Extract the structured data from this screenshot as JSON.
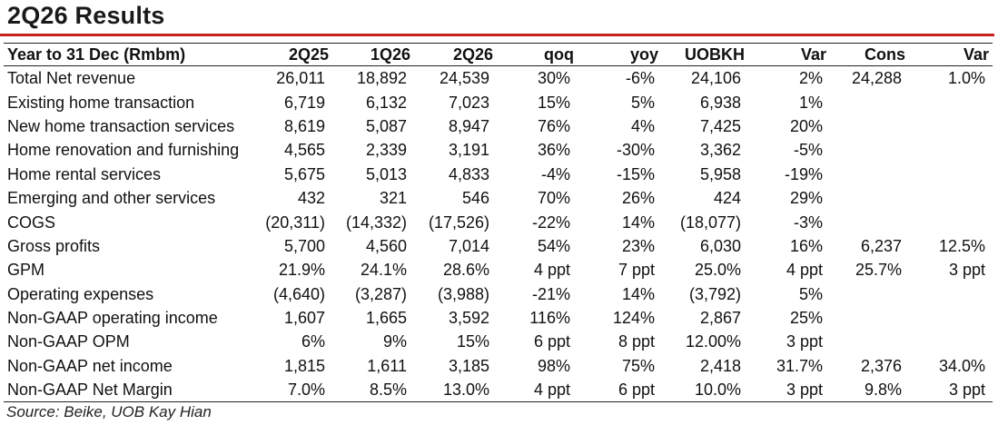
{
  "title": "2Q26 Results",
  "table": {
    "headers": [
      "Year to 31 Dec (Rmbm)",
      "2Q25",
      "1Q26",
      "2Q26",
      "qoq",
      "yoy",
      "UOBKH",
      "Var",
      "Cons",
      "Var"
    ],
    "rows": [
      [
        "Total Net revenue",
        "26,011",
        "18,892",
        "24,539",
        "30%",
        "-6%",
        "24,106",
        "2%",
        "24,288",
        "1.0%"
      ],
      [
        "Existing home transaction",
        "6,719",
        "6,132",
        "7,023",
        "15%",
        "5%",
        "6,938",
        "1%",
        "",
        ""
      ],
      [
        "New home transaction services",
        "8,619",
        "5,087",
        "8,947",
        "76%",
        "4%",
        "7,425",
        "20%",
        "",
        ""
      ],
      [
        "Home renovation and furnishing",
        "4,565",
        "2,339",
        "3,191",
        "36%",
        "-30%",
        "3,362",
        "-5%",
        "",
        ""
      ],
      [
        "Home rental services",
        "5,675",
        "5,013",
        "4,833",
        "-4%",
        "-15%",
        "5,958",
        "-19%",
        "",
        ""
      ],
      [
        "Emerging and other services",
        "432",
        "321",
        "546",
        "70%",
        "26%",
        "424",
        "29%",
        "",
        ""
      ],
      [
        "COGS",
        "(20,311)",
        "(14,332)",
        "(17,526)",
        "-22%",
        "14%",
        "(18,077)",
        "-3%",
        "",
        ""
      ],
      [
        "Gross profits",
        "5,700",
        "4,560",
        "7,014",
        "54%",
        "23%",
        "6,030",
        "16%",
        "6,237",
        "12.5%"
      ],
      [
        "GPM",
        "21.9%",
        "24.1%",
        "28.6%",
        "4 ppt",
        "7 ppt",
        "25.0%",
        "4 ppt",
        "25.7%",
        "3 ppt"
      ],
      [
        "Operating expenses",
        "(4,640)",
        "(3,287)",
        "(3,988)",
        "-21%",
        "14%",
        "(3,792)",
        "5%",
        "",
        ""
      ],
      [
        "Non-GAAP operating income",
        "1,607",
        "1,665",
        "3,592",
        "116%",
        "124%",
        "2,867",
        "25%",
        "",
        ""
      ],
      [
        "Non-GAAP OPM",
        "6%",
        "9%",
        "15%",
        "6 ppt",
        "8 ppt",
        "12.00%",
        "3 ppt",
        "",
        ""
      ],
      [
        "Non-GAAP net income",
        "1,815",
        "1,611",
        "3,185",
        "98%",
        "75%",
        "2,418",
        "31.7%",
        "2,376",
        "34.0%"
      ],
      [
        "Non-GAAP Net Margin",
        "7.0%",
        "8.5%",
        "13.0%",
        "4 ppt",
        "6 ppt",
        "10.0%",
        "3 ppt",
        "9.8%",
        "3 ppt"
      ]
    ]
  },
  "source": "Source: Beike, UOB Kay Hian",
  "colors": {
    "accent_line": "#c8201f"
  }
}
